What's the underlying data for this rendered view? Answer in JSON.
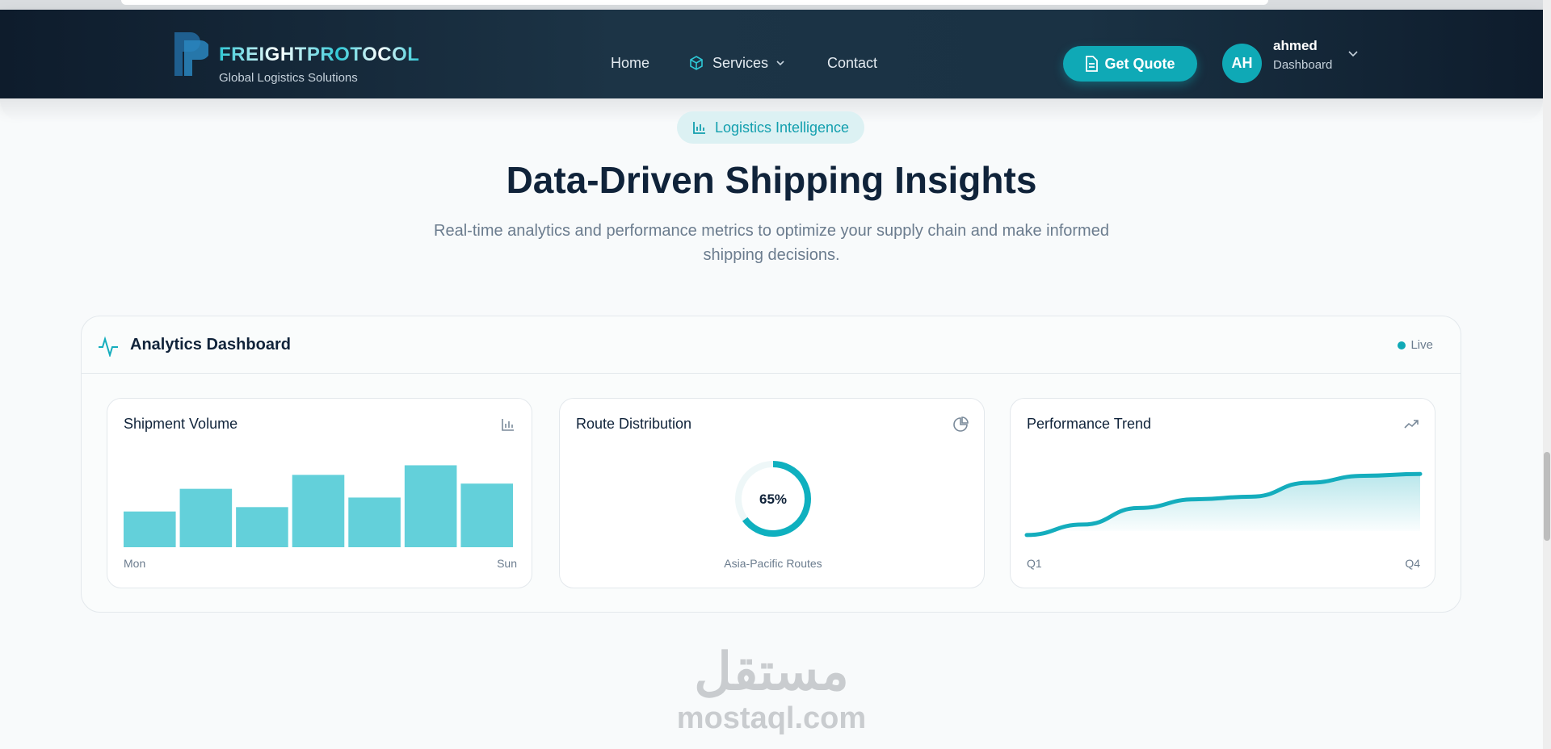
{
  "header": {
    "brand": "FREIGHTPROTOCOL",
    "tagline": "Global Logistics Solutions",
    "nav": [
      "Home",
      "Services",
      "Contact"
    ],
    "cta": "Get Quote",
    "user": {
      "initials": "AH",
      "name": "ahmed",
      "role": "Dashboard"
    }
  },
  "hero": {
    "badge": "Logistics Intelligence",
    "title": "Data-Driven Shipping Insights",
    "subtitle": "Real-time analytics and performance metrics to optimize your supply chain and make informed shipping decisions."
  },
  "dashboard": {
    "title": "Analytics Dashboard",
    "status": "Live"
  },
  "chart_data": [
    {
      "type": "bar",
      "title": "Shipment Volume",
      "categories": [
        "Mon",
        null,
        null,
        null,
        null,
        null,
        "Sun"
      ],
      "values": [
        41,
        67,
        46,
        83,
        57,
        94,
        73
      ],
      "ylim": [
        0,
        100
      ],
      "color": "#63d0da"
    },
    {
      "type": "donut",
      "title": "Route Distribution",
      "label": "Asia-Pacific Routes",
      "values": [
        65
      ],
      "value_labels": [
        "65%"
      ],
      "ylim": [
        0,
        100
      ],
      "color": "#0fb0bf"
    },
    {
      "type": "line",
      "title": "Performance Trend",
      "categories": [
        "Q1",
        null,
        null,
        null,
        null,
        null,
        null,
        "Q4"
      ],
      "values": [
        14,
        26,
        45,
        55,
        58,
        74,
        82,
        84
      ],
      "ylim": [
        0,
        100
      ],
      "color": "#14adbd"
    }
  ],
  "watermark": {
    "arabic": "مستقل",
    "latin": "mostaql.com"
  }
}
